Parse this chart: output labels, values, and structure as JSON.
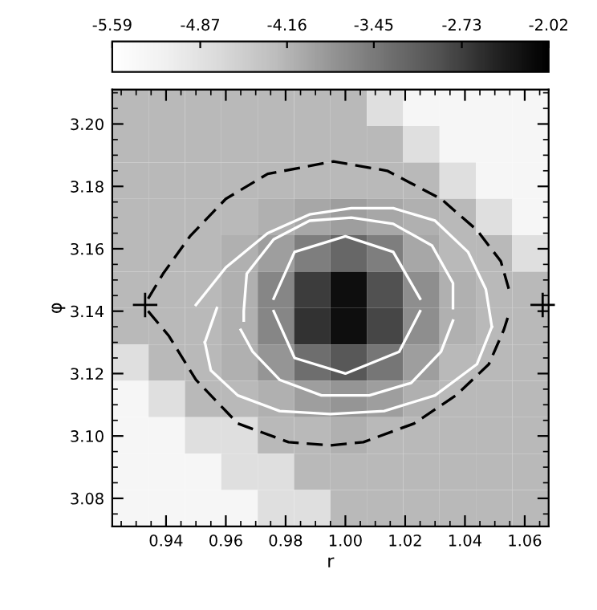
{
  "chart_data": {
    "type": "heatmap",
    "xlabel": "r",
    "ylabel": "φ",
    "xlim": [
      0.922,
      1.068
    ],
    "ylim": [
      3.071,
      3.211
    ],
    "xticks": [
      {
        "value": 0.94,
        "label": "0.94"
      },
      {
        "value": 0.96,
        "label": "0.96"
      },
      {
        "value": 0.98,
        "label": "0.98"
      },
      {
        "value": 1.0,
        "label": "1.00"
      },
      {
        "value": 1.02,
        "label": "1.02"
      },
      {
        "value": 1.04,
        "label": "1.04"
      },
      {
        "value": 1.06,
        "label": "1.06"
      }
    ],
    "yticks": [
      {
        "value": 3.08,
        "label": "3.08"
      },
      {
        "value": 3.1,
        "label": "3.10"
      },
      {
        "value": 3.12,
        "label": "3.12"
      },
      {
        "value": 3.14,
        "label": "3.14"
      },
      {
        "value": 3.16,
        "label": "3.16"
      },
      {
        "value": 3.18,
        "label": "3.18"
      },
      {
        "value": 3.2,
        "label": "3.20"
      }
    ],
    "clim": [
      -5.59,
      -2.02
    ],
    "cticks": [
      -5.59,
      -4.87,
      -4.16,
      -3.45,
      -2.73,
      -2.02
    ],
    "cells": [
      [
        -4.2,
        -4.2,
        -4.2,
        -4.2,
        -4.2,
        -4.2,
        -4.2,
        -4.8,
        -5.3,
        -5.3,
        -5.3,
        -5.3
      ],
      [
        -4.2,
        -4.2,
        -4.2,
        -4.2,
        -4.2,
        -4.2,
        -4.2,
        -4.2,
        -4.8,
        -5.3,
        -5.3,
        -5.3
      ],
      [
        -4.2,
        -4.2,
        -4.2,
        -4.2,
        -4.2,
        -4.2,
        -4.2,
        -4.2,
        -4.2,
        -4.8,
        -5.3,
        -5.3
      ],
      [
        -4.2,
        -4.2,
        -4.2,
        -4.2,
        -4.1,
        -4.0,
        -3.9,
        -4.0,
        -4.1,
        -4.2,
        -4.8,
        -5.3
      ],
      [
        -4.2,
        -4.2,
        -4.2,
        -4.1,
        -3.9,
        -3.5,
        -3.2,
        -3.5,
        -4.0,
        -4.2,
        -4.2,
        -4.8
      ],
      [
        -4.2,
        -4.2,
        -4.2,
        -4.1,
        -3.6,
        -2.7,
        -2.2,
        -2.9,
        -3.7,
        -4.1,
        -4.2,
        -4.2
      ],
      [
        -4.2,
        -4.2,
        -4.2,
        -4.1,
        -3.6,
        -2.6,
        -2.2,
        -2.8,
        -3.7,
        -4.1,
        -4.2,
        -4.2
      ],
      [
        -4.8,
        -4.2,
        -4.2,
        -4.1,
        -3.8,
        -3.3,
        -3.0,
        -3.4,
        -3.9,
        -4.2,
        -4.2,
        -4.2
      ],
      [
        -5.3,
        -4.8,
        -4.2,
        -4.2,
        -4.1,
        -3.9,
        -3.8,
        -3.9,
        -4.1,
        -4.2,
        -4.2,
        -4.2
      ],
      [
        -5.3,
        -5.3,
        -4.8,
        -4.8,
        -4.2,
        -4.2,
        -4.1,
        -4.2,
        -4.2,
        -4.2,
        -4.2,
        -4.2
      ],
      [
        -5.3,
        -5.3,
        -5.3,
        -4.8,
        -4.8,
        -4.2,
        -4.2,
        -4.2,
        -4.2,
        -4.2,
        -4.2,
        -4.2
      ],
      [
        -5.3,
        -5.3,
        -5.3,
        -5.3,
        -4.8,
        -4.8,
        -4.2,
        -4.2,
        -4.2,
        -4.2,
        -4.2,
        -4.2
      ]
    ],
    "series": [
      {
        "type": "scatter",
        "color": "#000000",
        "marker": "cross",
        "x": [
          0.933,
          1.066
        ],
        "values": [
          3.142,
          3.142
        ]
      },
      {
        "type": "line",
        "color": "#000000",
        "line_style": "dashed",
        "x": [
          0.934,
          0.939,
          0.948,
          0.96,
          0.974,
          0.996,
          1.014,
          1.032,
          1.044,
          1.052,
          1.055
        ],
        "values": [
          3.144,
          3.152,
          3.164,
          3.176,
          3.184,
          3.188,
          3.185,
          3.176,
          3.166,
          3.156,
          3.146
        ]
      },
      {
        "type": "line",
        "color": "#000000",
        "line_style": "dashed",
        "x": [
          0.934,
          0.941,
          0.95,
          0.964,
          0.981,
          0.995,
          1.006,
          1.023,
          1.037,
          1.048,
          1.053,
          1.055
        ],
        "values": [
          3.14,
          3.132,
          3.118,
          3.104,
          3.098,
          3.097,
          3.098,
          3.104,
          3.113,
          3.123,
          3.134,
          3.14
        ]
      },
      {
        "type": "line",
        "color": "#ffffff",
        "line_style": "solid",
        "x": [
          0.976,
          0.983,
          1.0,
          1.016,
          1.025
        ],
        "values": [
          3.144,
          3.159,
          3.164,
          3.159,
          3.144
        ]
      },
      {
        "type": "line",
        "color": "#ffffff",
        "line_style": "solid",
        "x": [
          0.976,
          0.983,
          1.0,
          1.018,
          1.025
        ],
        "values": [
          3.14,
          3.125,
          3.12,
          3.127,
          3.14
        ]
      },
      {
        "type": "line",
        "color": "#ffffff",
        "line_style": "solid",
        "x": [
          0.966,
          0.966,
          0.967,
          0.976,
          0.988,
          1.002,
          1.016,
          1.029,
          1.036,
          1.036
        ],
        "values": [
          3.137,
          3.14,
          3.152,
          3.163,
          3.169,
          3.17,
          3.168,
          3.161,
          3.149,
          3.141
        ]
      },
      {
        "type": "line",
        "color": "#ffffff",
        "line_style": "solid",
        "x": [
          0.965,
          0.969,
          0.978,
          0.992,
          1.008,
          1.022,
          1.032,
          1.036
        ],
        "values": [
          3.134,
          3.127,
          3.118,
          3.113,
          3.113,
          3.117,
          3.127,
          3.137
        ]
      },
      {
        "type": "line",
        "color": "#ffffff",
        "line_style": "solid",
        "x": [
          0.95,
          0.96,
          0.974,
          0.988,
          1.002,
          1.016,
          1.03,
          1.041,
          1.047,
          1.049
        ],
        "values": [
          3.142,
          3.154,
          3.165,
          3.171,
          3.173,
          3.173,
          3.169,
          3.159,
          3.147,
          3.135
        ]
      },
      {
        "type": "line",
        "color": "#ffffff",
        "line_style": "solid",
        "x": [
          0.953,
          0.955,
          0.964,
          0.978,
          0.995,
          1.013,
          1.03,
          1.044,
          1.049
        ],
        "values": [
          3.13,
          3.121,
          3.113,
          3.108,
          3.107,
          3.108,
          3.113,
          3.123,
          3.135
        ]
      },
      {
        "type": "line",
        "color": "#ffffff",
        "line_style": "solid",
        "x": [
          0.953,
          0.957
        ],
        "values": [
          3.13,
          3.141
        ]
      }
    ]
  }
}
